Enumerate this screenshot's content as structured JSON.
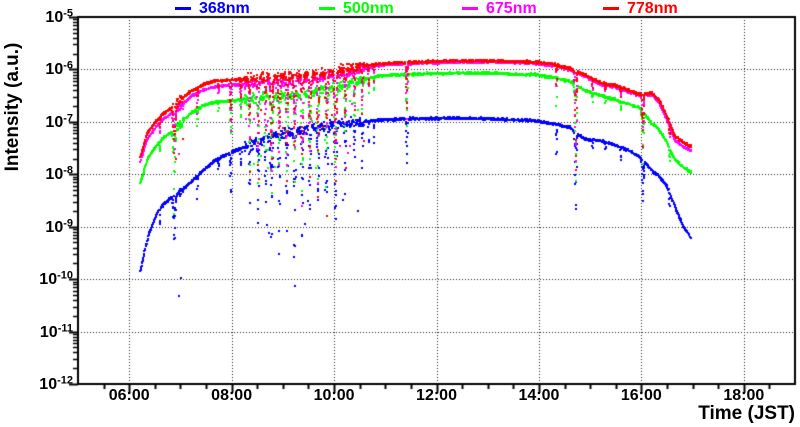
{
  "legend": {
    "entries": [
      {
        "label": "368nm",
        "color": "#0000ff",
        "marker": "line"
      },
      {
        "label": "500nm",
        "color": "#00ff00",
        "marker": "line"
      },
      {
        "label": "675nm",
        "color": "#ff00ff",
        "marker": "line"
      },
      {
        "label": "778nm",
        "color": "#ff0000",
        "marker": "line"
      }
    ]
  },
  "axes": {
    "x": {
      "title": "Time (JST)",
      "ticks": [
        {
          "label": "06:00",
          "hour": 6
        },
        {
          "label": "08:00",
          "hour": 8
        },
        {
          "label": "10:00",
          "hour": 10
        },
        {
          "label": "12:00",
          "hour": 12
        },
        {
          "label": "14:00",
          "hour": 14
        },
        {
          "label": "16:00",
          "hour": 16
        },
        {
          "label": "18:00",
          "hour": 18
        }
      ],
      "range_hours": [
        5,
        19
      ],
      "minor_step_hours": 0.5
    },
    "y": {
      "title": "Intensity (a.u.)",
      "ticks": [
        {
          "base": "10",
          "exp": "-5"
        },
        {
          "base": "10",
          "exp": "-6"
        },
        {
          "base": "10",
          "exp": "-7"
        },
        {
          "base": "10",
          "exp": "-8"
        },
        {
          "base": "10",
          "exp": "-9"
        },
        {
          "base": "10",
          "exp": "-10"
        },
        {
          "base": "10",
          "exp": "-11"
        },
        {
          "base": "10",
          "exp": "-12"
        }
      ],
      "scale": "log",
      "range_exponents": [
        -12,
        -5
      ],
      "minor_ticks": "log 2-9 per decade"
    }
  },
  "chart_data": {
    "type": "scatter",
    "title": "",
    "xlabel": "Time (JST)",
    "ylabel": "Intensity (a.u.)",
    "xlim": [
      5,
      19
    ],
    "ylim": [
      1e-12,
      1e-05
    ],
    "grid": "dotted lines at 2-hour major ticks and each decade",
    "axis_color": "#000000",
    "marker_px": 2,
    "series": [
      {
        "name": "368nm",
        "color": "#0000ff",
        "dip_class": "blue",
        "anchors": [
          [
            6.22,
            1.4e-10
          ],
          [
            6.3,
            3.5e-10
          ],
          [
            6.4,
            8e-10
          ],
          [
            6.55,
            1.9e-09
          ],
          [
            6.7,
            2.9e-09
          ],
          [
            6.85,
            3.7e-09
          ],
          [
            7.0,
            4.6e-09
          ],
          [
            7.2,
            7e-09
          ],
          [
            7.45,
            1.2e-08
          ],
          [
            7.7,
            1.9e-08
          ],
          [
            8.0,
            2.6e-08
          ],
          [
            8.4,
            3.9e-08
          ],
          [
            8.8,
            5.4e-08
          ],
          [
            9.2,
            6.6e-08
          ],
          [
            9.6,
            7.7e-08
          ],
          [
            10.0,
            8.7e-08
          ],
          [
            10.35,
            9.6e-08
          ],
          [
            10.7,
            1.05e-07
          ],
          [
            11.0,
            1.1e-07
          ],
          [
            11.6,
            1.15e-07
          ],
          [
            12.3,
            1.17e-07
          ],
          [
            13.2,
            1.13e-07
          ],
          [
            13.9,
            1.05e-07
          ],
          [
            14.3,
            9.2e-08
          ],
          [
            14.6,
            7.8e-08
          ],
          [
            14.9,
            4.6e-08
          ],
          [
            15.2,
            4.4e-08
          ],
          [
            15.5,
            3.6e-08
          ],
          [
            15.75,
            2.9e-08
          ],
          [
            15.95,
            2.2e-08
          ],
          [
            16.2,
            1.2e-08
          ],
          [
            16.35,
            9e-09
          ],
          [
            16.5,
            6e-09
          ],
          [
            16.65,
            2.5e-09
          ],
          [
            16.8,
            1.1e-09
          ],
          [
            16.97,
            6e-10
          ]
        ]
      },
      {
        "name": "500nm",
        "color": "#00ff00",
        "dip_class": "bright",
        "anchors": [
          [
            6.22,
            6.8e-09
          ],
          [
            6.35,
            1.9e-08
          ],
          [
            6.5,
            3.2e-08
          ],
          [
            6.65,
            4.8e-08
          ],
          [
            6.82,
            6.3e-08
          ],
          [
            7.0,
            9.5e-08
          ],
          [
            7.2,
            1.45e-07
          ],
          [
            7.45,
            2.05e-07
          ],
          [
            7.7,
            2.4e-07
          ],
          [
            8.0,
            2.55e-07
          ],
          [
            8.4,
            2.8e-07
          ],
          [
            8.8,
            3e-07
          ],
          [
            9.2,
            3.3e-07
          ],
          [
            9.6,
            3.7e-07
          ],
          [
            10.0,
            4.4e-07
          ],
          [
            10.35,
            5.5e-07
          ],
          [
            10.7,
            7e-07
          ],
          [
            11.0,
            7.7e-07
          ],
          [
            11.6,
            8.1e-07
          ],
          [
            12.3,
            8.5e-07
          ],
          [
            13.2,
            8.4e-07
          ],
          [
            13.9,
            7.9e-07
          ],
          [
            14.3,
            7e-07
          ],
          [
            14.6,
            5.9e-07
          ],
          [
            14.9,
            4e-07
          ],
          [
            15.2,
            3.2e-07
          ],
          [
            15.5,
            2.6e-07
          ],
          [
            15.75,
            2.2e-07
          ],
          [
            15.95,
            1.9e-07
          ],
          [
            16.2,
            9.5e-08
          ],
          [
            16.35,
            7e-08
          ],
          [
            16.5,
            4e-08
          ],
          [
            16.65,
            1.9e-08
          ],
          [
            16.8,
            1.4e-08
          ],
          [
            16.97,
            1.1e-08
          ]
        ]
      },
      {
        "name": "675nm",
        "color": "#ff00ff",
        "dip_class": "bright",
        "anchors": [
          [
            6.22,
            1.7e-08
          ],
          [
            6.35,
            4.7e-08
          ],
          [
            6.5,
            7.4e-08
          ],
          [
            6.65,
            1.1e-07
          ],
          [
            6.82,
            1.45e-07
          ],
          [
            7.0,
            2e-07
          ],
          [
            7.2,
            3e-07
          ],
          [
            7.45,
            4.1e-07
          ],
          [
            7.7,
            4.7e-07
          ],
          [
            8.0,
            5e-07
          ],
          [
            8.4,
            5.4e-07
          ],
          [
            8.8,
            5.7e-07
          ],
          [
            9.2,
            6.1e-07
          ],
          [
            9.6,
            6.7e-07
          ],
          [
            10.0,
            7.8e-07
          ],
          [
            10.35,
            9.4e-07
          ],
          [
            10.7,
            1.12e-06
          ],
          [
            11.0,
            1.22e-06
          ],
          [
            11.6,
            1.31e-06
          ],
          [
            12.3,
            1.38e-06
          ],
          [
            13.2,
            1.38e-06
          ],
          [
            13.9,
            1.31e-06
          ],
          [
            14.3,
            1.18e-06
          ],
          [
            14.6,
            9.9e-07
          ],
          [
            14.9,
            7.4e-07
          ],
          [
            15.2,
            5.2e-07
          ],
          [
            15.5,
            4.6e-07
          ],
          [
            15.75,
            3.7e-07
          ],
          [
            15.95,
            3.2e-07
          ],
          [
            16.2,
            3.3e-07
          ],
          [
            16.35,
            2.3e-07
          ],
          [
            16.5,
            1.1e-07
          ],
          [
            16.65,
            4.6e-08
          ],
          [
            16.8,
            3.5e-08
          ],
          [
            16.97,
            2.8e-08
          ]
        ]
      },
      {
        "name": "778nm",
        "color": "#ff0000",
        "dip_class": "bright",
        "anchors": [
          [
            6.22,
            2.2e-08
          ],
          [
            6.35,
            6e-08
          ],
          [
            6.5,
            9.5e-08
          ],
          [
            6.65,
            1.4e-07
          ],
          [
            6.82,
            1.85e-07
          ],
          [
            7.0,
            2.6e-07
          ],
          [
            7.2,
            3.8e-07
          ],
          [
            7.45,
            5.2e-07
          ],
          [
            7.7,
            6e-07
          ],
          [
            8.0,
            6.3e-07
          ],
          [
            8.4,
            6.8e-07
          ],
          [
            8.8,
            7.1e-07
          ],
          [
            9.2,
            7.4e-07
          ],
          [
            9.6,
            8e-07
          ],
          [
            10.0,
            9e-07
          ],
          [
            10.35,
            1.05e-06
          ],
          [
            10.7,
            1.22e-06
          ],
          [
            11.0,
            1.3e-06
          ],
          [
            11.6,
            1.38e-06
          ],
          [
            12.3,
            1.45e-06
          ],
          [
            13.2,
            1.45e-06
          ],
          [
            13.9,
            1.38e-06
          ],
          [
            14.3,
            1.25e-06
          ],
          [
            14.6,
            1.05e-06
          ],
          [
            14.9,
            7.9e-07
          ],
          [
            15.2,
            5.6e-07
          ],
          [
            15.5,
            4.9e-07
          ],
          [
            15.75,
            4e-07
          ],
          [
            15.95,
            3.4e-07
          ],
          [
            16.2,
            3.6e-07
          ],
          [
            16.35,
            2.6e-07
          ],
          [
            16.5,
            1.3e-07
          ],
          [
            16.65,
            5.5e-08
          ],
          [
            16.8,
            4.2e-08
          ],
          [
            16.97,
            3.4e-08
          ]
        ]
      }
    ],
    "cloud_dips": [
      [
        6.6,
        0.015,
        0.25,
        0.45
      ],
      [
        6.88,
        0.055,
        0.85,
        0.9
      ],
      [
        7.33,
        0.02,
        0.35,
        0.4
      ],
      [
        7.74,
        0.015,
        0.2,
        0.25
      ],
      [
        7.98,
        0.025,
        0.9,
        0.9
      ],
      [
        8.18,
        0.02,
        0.45,
        0.5
      ],
      [
        8.35,
        0.03,
        1.2,
        1.1
      ],
      [
        8.52,
        0.035,
        1.6,
        1.7
      ],
      [
        8.66,
        0.025,
        1.0,
        1.5
      ],
      [
        8.78,
        0.04,
        1.8,
        2.1
      ],
      [
        8.93,
        0.035,
        1.5,
        2.3
      ],
      [
        9.08,
        0.035,
        1.9,
        1.8
      ],
      [
        9.23,
        0.04,
        1.6,
        2.4
      ],
      [
        9.38,
        0.035,
        2.0,
        2.2
      ],
      [
        9.53,
        0.04,
        1.4,
        1.9
      ],
      [
        9.69,
        0.035,
        1.9,
        1.7
      ],
      [
        9.86,
        0.04,
        1.2,
        1.6
      ],
      [
        10.03,
        0.05,
        1.7,
        2.1
      ],
      [
        10.22,
        0.035,
        1.2,
        1.3
      ],
      [
        10.4,
        0.025,
        0.8,
        0.9
      ],
      [
        10.55,
        0.02,
        0.9,
        1.0
      ],
      [
        10.68,
        0.015,
        0.5,
        0.6
      ],
      [
        10.78,
        0.015,
        0.3,
        0.35
      ],
      [
        11.42,
        0.03,
        1.1,
        0.9
      ],
      [
        14.34,
        0.015,
        0.6,
        1.0
      ],
      [
        14.72,
        0.04,
        1.9,
        1.6
      ],
      [
        15.05,
        0.015,
        0.2,
        0.25
      ],
      [
        15.3,
        0.015,
        0.15,
        0.2
      ],
      [
        15.6,
        0.015,
        0.2,
        0.3
      ],
      [
        16.03,
        0.04,
        0.85,
        0.9
      ],
      [
        16.55,
        0.015,
        0.3,
        0.4
      ]
    ],
    "noisy_intervals": [
      [
        6.85,
        7.05
      ],
      [
        8.25,
        10.6
      ]
    ],
    "time_span_hours": [
      6.22,
      16.98
    ]
  }
}
